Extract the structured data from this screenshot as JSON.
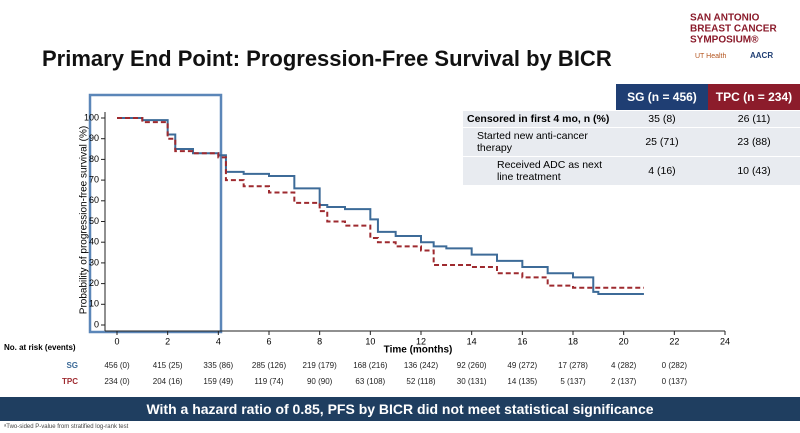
{
  "header": {
    "title": "Primary End Point: Progression-Free Survival by BICR",
    "logo": [
      "SAN ANTONIO",
      "BREAST CANCER",
      "SYMPOSIUM®"
    ],
    "logo_small": [
      "UT Health",
      "AACR"
    ]
  },
  "chart_data": {
    "type": "line",
    "ylabel": "Probability of progression-free survival (%)",
    "xlabel": "Time (months)",
    "x": [
      0,
      1,
      2,
      2.3,
      3,
      4,
      4.3,
      5,
      6,
      7,
      8,
      8.3,
      9,
      10,
      10.3,
      11,
      12,
      12.5,
      13,
      14,
      15,
      16,
      17,
      18,
      18.8,
      19,
      20,
      20.8
    ],
    "series": [
      {
        "name": "SG",
        "color": "#3d6b98",
        "line_style": "solid",
        "values": [
          100,
          99,
          92,
          85,
          83,
          82,
          74,
          73,
          72,
          66,
          58,
          57,
          56,
          51,
          45,
          43,
          40,
          38,
          37,
          34,
          31,
          28,
          25,
          23,
          16,
          15,
          15,
          15
        ]
      },
      {
        "name": "TPC",
        "color": "#9e2a2f",
        "line_style": "dashed",
        "values": [
          100,
          98,
          90,
          84,
          83,
          81,
          70,
          67,
          64,
          59,
          55,
          50,
          48,
          42,
          40,
          38,
          36,
          29,
          29,
          28,
          25,
          23,
          19,
          18,
          18,
          18,
          18,
          18
        ]
      }
    ],
    "xlim": [
      0,
      24
    ],
    "xticks": [
      0,
      2,
      4,
      6,
      8,
      10,
      12,
      14,
      16,
      18,
      20,
      22,
      24
    ],
    "ylim": [
      0,
      100
    ],
    "yticks": [
      0,
      10,
      20,
      30,
      40,
      50,
      60,
      70,
      80,
      90,
      100
    ]
  },
  "at_risk": {
    "label": "No. at risk (events)",
    "rows": [
      [
        "456 (0)",
        "415 (25)",
        "335 (86)",
        "285 (126)",
        "219 (179)",
        "168 (216)",
        "136 (242)",
        "92 (260)",
        "49 (272)",
        "17 (278)",
        "4 (282)",
        "0 (282)"
      ],
      [
        "234 (0)",
        "204 (16)",
        "159 (49)",
        "119 (74)",
        "90 (90)",
        "63 (108)",
        "52 (118)",
        "30 (131)",
        "14 (135)",
        "5 (137)",
        "2 (137)",
        "0 (137)"
      ]
    ]
  },
  "censor_table": {
    "headers": [
      "SG (n = 456)",
      "TPC (n = 234)"
    ],
    "rows": [
      {
        "label": "Censored in first 4 mo, n (%)",
        "values": [
          "35 (8)",
          "26 (11)"
        ]
      },
      {
        "label": "Started new anti-cancer therapy",
        "values": [
          "25 (71)",
          "23 (88)"
        ]
      },
      {
        "label": "Received ADC as next line treatment",
        "values": [
          "4 (16)",
          "10 (43)"
        ]
      }
    ]
  },
  "banner": "With a hazard ratio of 0.85, PFS by BICR did not meet statistical significance",
  "footnote": "ᵃTwo-sided P-value from stratified log-rank test"
}
